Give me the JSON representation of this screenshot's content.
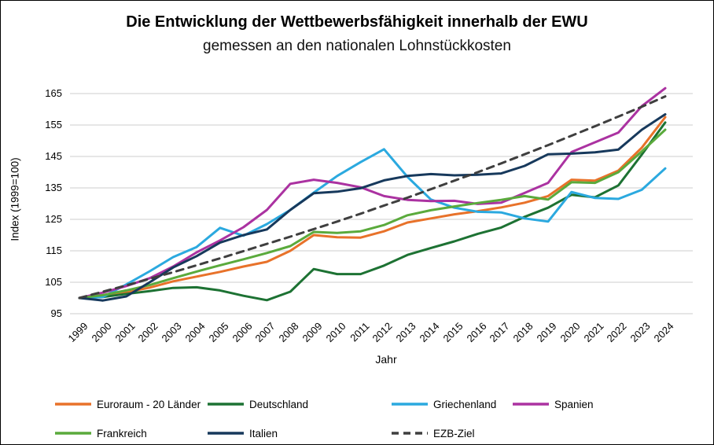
{
  "chart_data": {
    "type": "line",
    "title": "Die Entwicklung der Wettbewerbsfähigkeit innerhalb der EWU",
    "subtitle": "gemessen an den nationalen Lohnstückkosten",
    "xlabel": "Jahr",
    "ylabel": "Index (1999=100)",
    "ylim": [
      95,
      165
    ],
    "ytick_step": 10,
    "grid": true,
    "legend_position": "bottom",
    "x": [
      "1999",
      "2000",
      "2001",
      "2002",
      "2003",
      "2004",
      "2005",
      "2006",
      "2007",
      "2008",
      "2009",
      "2010",
      "2011",
      "2012",
      "2013",
      "2014",
      "2015",
      "2016",
      "2017",
      "2018",
      "2019",
      "2020",
      "2021",
      "2022",
      "2023",
      "2024"
    ],
    "series": [
      {
        "name": "Euroraum - 20 Länder",
        "color": "#E8722A",
        "dashed": false,
        "values": [
          100,
          100.4,
          101.8,
          103.3,
          105.3,
          106.8,
          108.3,
          110,
          111.5,
          115,
          120,
          119.3,
          119.2,
          121.2,
          124,
          125.3,
          126.6,
          127.6,
          128.8,
          130.3,
          132.4,
          137.6,
          137.3,
          140.5,
          147.8,
          157.5
        ]
      },
      {
        "name": "Deutschland",
        "color": "#1D7233",
        "dashed": false,
        "values": [
          100,
          100.3,
          101.3,
          102.2,
          103.2,
          103.4,
          102.4,
          100.7,
          99.3,
          102,
          109.2,
          107.6,
          107.6,
          110.3,
          113.7,
          115.9,
          118,
          120.4,
          122.4,
          125.8,
          128.7,
          132.8,
          132,
          135.8,
          145.6,
          155.8
        ]
      },
      {
        "name": "Griechenland",
        "color": "#2BA9DF",
        "dashed": false,
        "values": [
          100,
          100.3,
          104.3,
          108.5,
          113,
          116.2,
          122.3,
          119.8,
          123.5,
          128,
          133.5,
          138.8,
          143.2,
          147.3,
          138.5,
          131.3,
          128.7,
          127.4,
          127.2,
          125.3,
          124.3,
          133.7,
          131.8,
          131.5,
          134.4,
          141.2
        ]
      },
      {
        "name": "Spanien",
        "color": "#AB32A1",
        "dashed": false,
        "values": [
          100,
          101.7,
          103.8,
          106.3,
          110,
          114.5,
          118.3,
          122.5,
          128,
          136.3,
          137.6,
          136.6,
          135.2,
          132.4,
          131.2,
          130.8,
          130.9,
          129.9,
          130.3,
          133.4,
          136.6,
          146.4,
          149.5,
          152.6,
          161,
          166.7
        ]
      },
      {
        "name": "Frankreich",
        "color": "#5AAA3C",
        "dashed": false,
        "values": [
          100,
          100.9,
          102.4,
          104.1,
          106.3,
          108.4,
          110.4,
          112.3,
          114.3,
          116.5,
          121,
          120.7,
          121.2,
          123.2,
          126.3,
          127.9,
          129.1,
          130.2,
          131.2,
          132.4,
          131.3,
          136.8,
          136.6,
          140,
          146.6,
          153.5
        ]
      },
      {
        "name": "Italien",
        "color": "#17395C",
        "dashed": false,
        "values": [
          100,
          99.2,
          100.5,
          105,
          109.7,
          113.3,
          117.6,
          120,
          121.8,
          128,
          133.3,
          133.8,
          134.9,
          137.4,
          138.8,
          139.4,
          139,
          139.2,
          139.6,
          142,
          145.7,
          145.9,
          146.3,
          147.2,
          153.5,
          158.4
        ]
      },
      {
        "name": "EZB-Ziel",
        "color": "#3F3F3F",
        "dashed": true,
        "values": [
          100,
          102,
          104,
          106.1,
          108.2,
          110.4,
          112.6,
          114.9,
          117.2,
          119.5,
          121.9,
          124.3,
          126.8,
          129.4,
          131.9,
          134.6,
          137.3,
          140,
          142.8,
          145.7,
          148.6,
          151.6,
          154.6,
          157.7,
          160.8,
          164.1
        ]
      }
    ],
    "gridline_color": "#D6D6D6"
  }
}
